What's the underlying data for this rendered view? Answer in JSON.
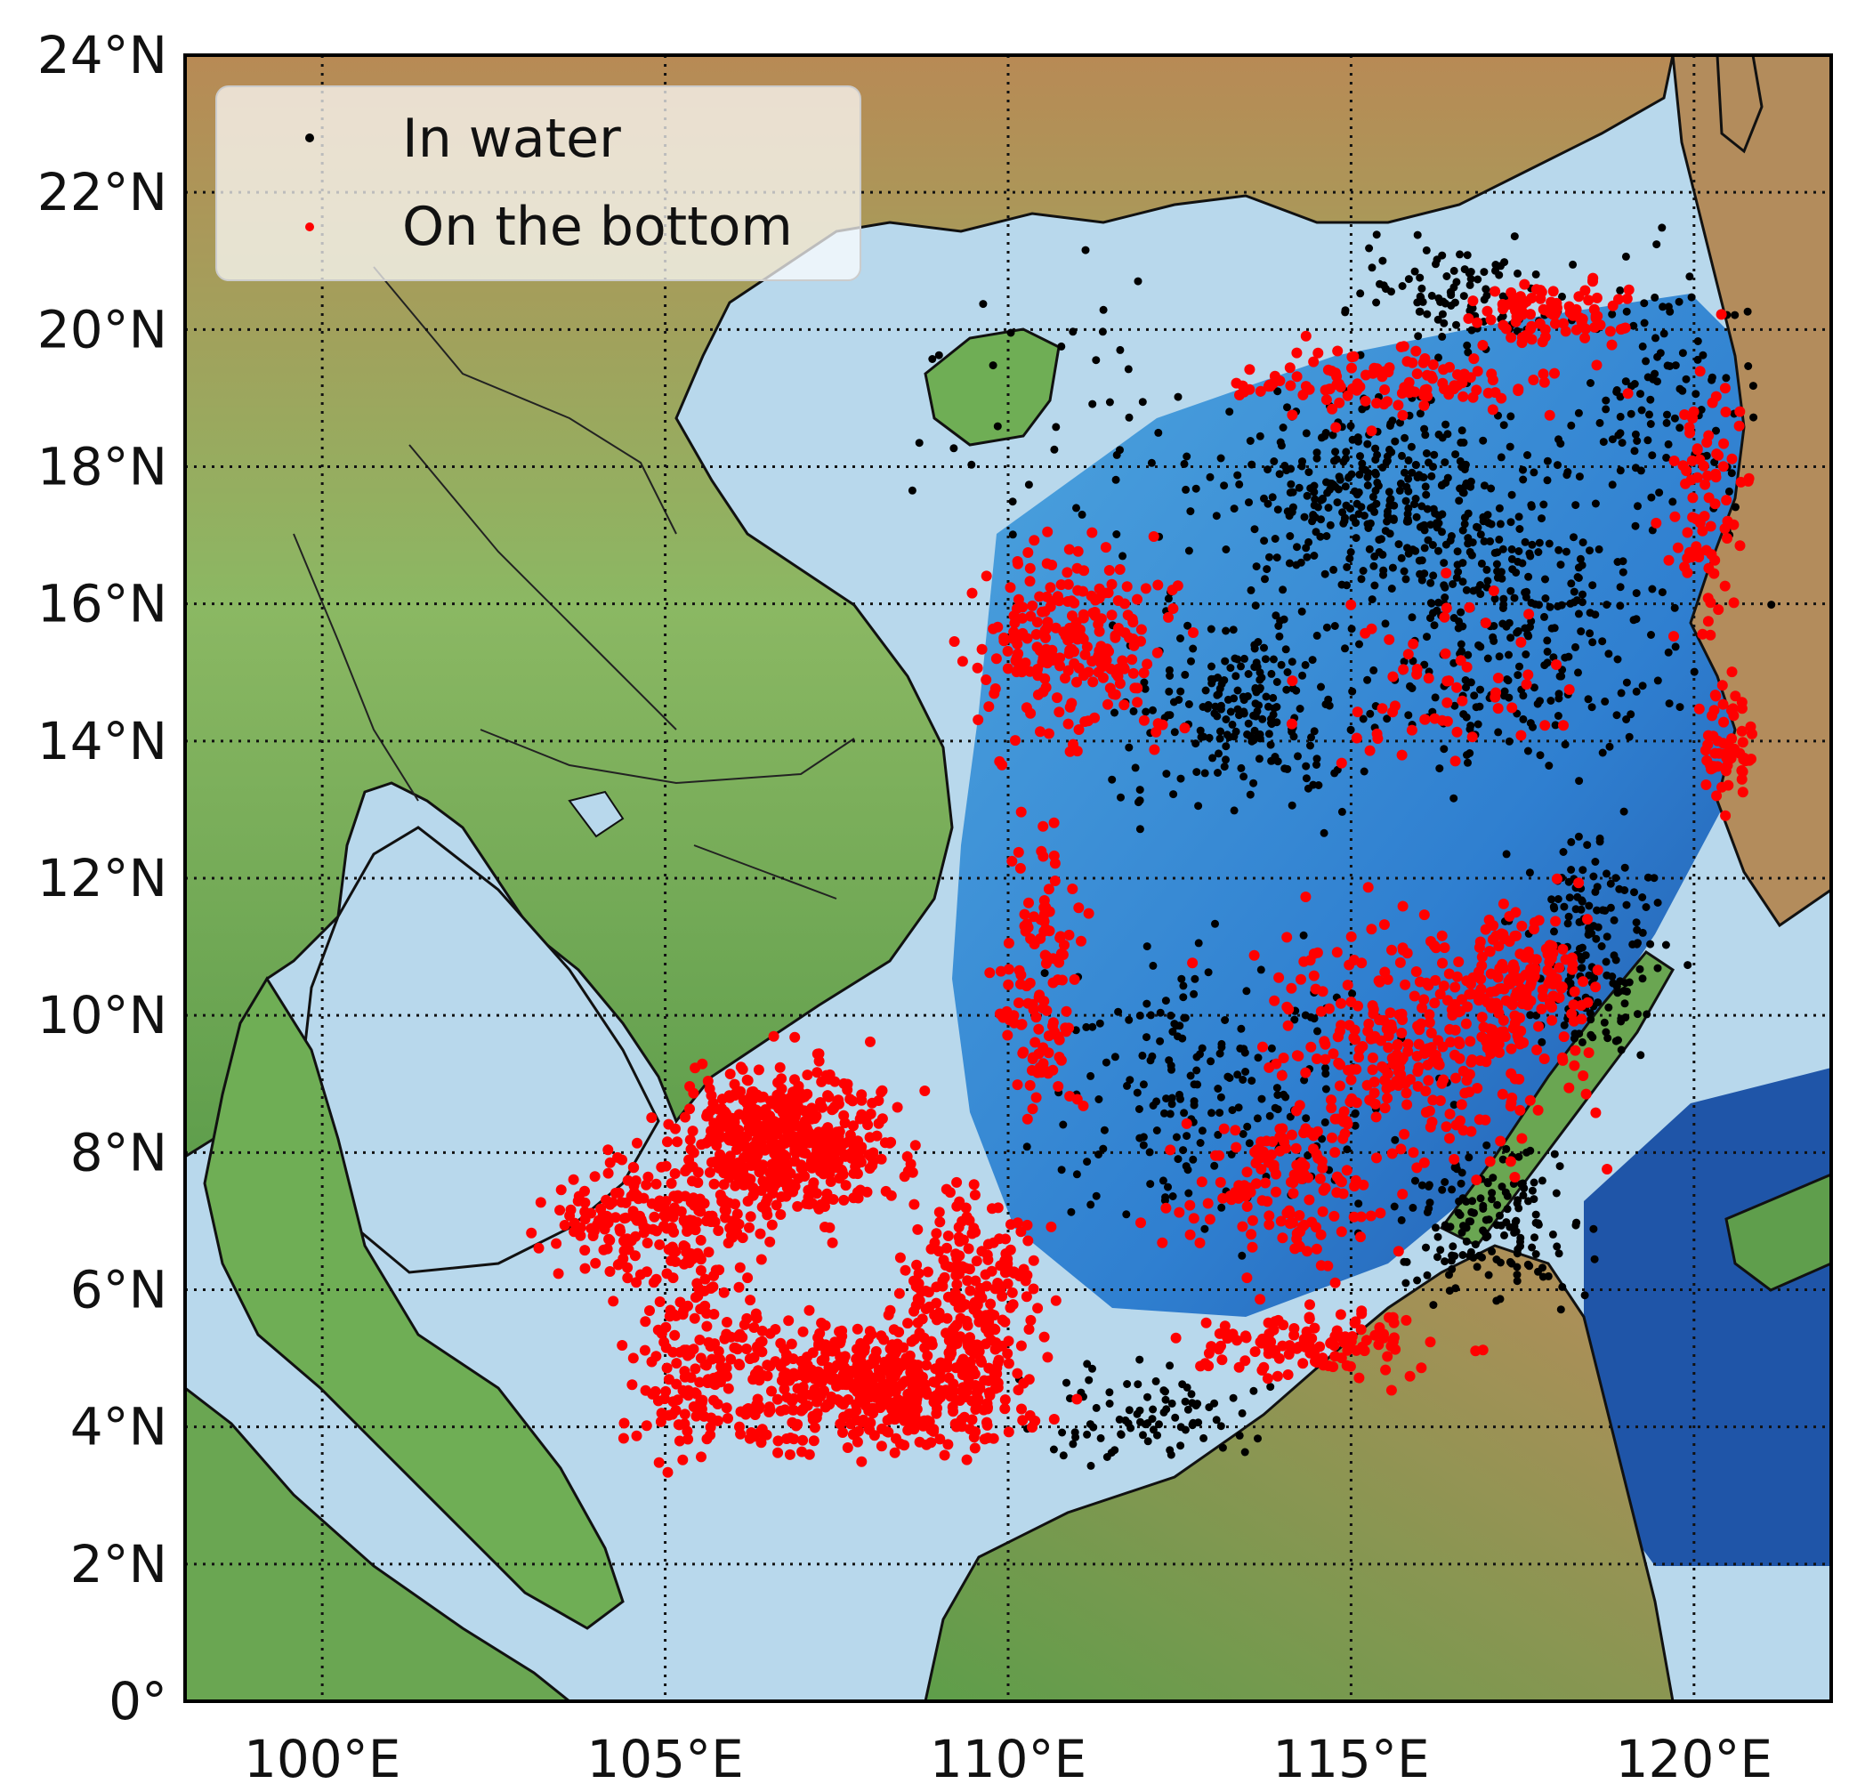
{
  "map": {
    "region": "South China Sea",
    "projection": "equirectangular",
    "lon_range": [
      98,
      122
    ],
    "lat_range": [
      0,
      24
    ],
    "graticule": "dotted",
    "basemap": "shaded relief / bathymetry",
    "colors": {
      "land_low": "#6fae55",
      "land_high": "#b88a55",
      "shelf_water": "#b8d8ec",
      "deep_water": "#2f7fd0",
      "deepest_water": "#1f55a8",
      "coastline": "#111111"
    }
  },
  "axes": {
    "lat_ticks": [
      {
        "value": 24,
        "label": "24°N"
      },
      {
        "value": 22,
        "label": "22°N"
      },
      {
        "value": 20,
        "label": "20°N"
      },
      {
        "value": 18,
        "label": "18°N"
      },
      {
        "value": 16,
        "label": "16°N"
      },
      {
        "value": 14,
        "label": "14°N"
      },
      {
        "value": 12,
        "label": "12°N"
      },
      {
        "value": 10,
        "label": "10°N"
      },
      {
        "value": 8,
        "label": "8°N"
      },
      {
        "value": 6,
        "label": "6°N"
      },
      {
        "value": 4,
        "label": "4°N"
      },
      {
        "value": 2,
        "label": "2°N"
      },
      {
        "value": 0,
        "label": "0°"
      }
    ],
    "lon_ticks": [
      {
        "value": 100,
        "label": "100°E"
      },
      {
        "value": 105,
        "label": "105°E"
      },
      {
        "value": 110,
        "label": "110°E"
      },
      {
        "value": 115,
        "label": "115°E"
      },
      {
        "value": 120,
        "label": "120°E"
      }
    ]
  },
  "legend": {
    "placement": "top-left",
    "entries": [
      {
        "label": "In water",
        "color": "#000000"
      },
      {
        "label": "On the bottom",
        "color": "#ff0000"
      }
    ]
  },
  "chart_data": {
    "type": "scatter",
    "title": "",
    "xlabel": "",
    "ylabel": "",
    "xlim": [
      98,
      122
    ],
    "ylim": [
      0,
      24
    ],
    "grid": true,
    "series": [
      {
        "name": "In water",
        "color": "#000000",
        "clusters": [
          {
            "center": [
              115.5,
              17.5
            ],
            "spread": [
              2.2,
              1.4
            ],
            "count": 360
          },
          {
            "center": [
              117.5,
              15.5
            ],
            "spread": [
              2.0,
              2.0
            ],
            "count": 260
          },
          {
            "center": [
              113.5,
              14.5
            ],
            "spread": [
              1.8,
              1.4
            ],
            "count": 220
          },
          {
            "center": [
              118.5,
              11.0
            ],
            "spread": [
              1.0,
              1.6
            ],
            "count": 160
          },
          {
            "center": [
              117.0,
              7.0
            ],
            "spread": [
              1.4,
              1.2
            ],
            "count": 160
          },
          {
            "center": [
              113.0,
              9.0
            ],
            "spread": [
              2.5,
              2.0
            ],
            "count": 200
          },
          {
            "center": [
              112.0,
              4.2
            ],
            "spread": [
              1.8,
              0.7
            ],
            "count": 90
          },
          {
            "center": [
              119.5,
              19.0
            ],
            "spread": [
              1.4,
              2.0
            ],
            "count": 120
          },
          {
            "center": [
              116.5,
              20.5
            ],
            "spread": [
              1.4,
              0.8
            ],
            "count": 100
          },
          {
            "center": [
              111.5,
              18.5
            ],
            "spread": [
              2.5,
              2.5
            ],
            "count": 50
          }
        ]
      },
      {
        "name": "On the bottom",
        "color": "#ff0000",
        "clusters": [
          {
            "center": [
              106.8,
              8.2
            ],
            "spread": [
              1.5,
              1.1
            ],
            "count": 520
          },
          {
            "center": [
              108.0,
              4.6
            ],
            "spread": [
              2.2,
              0.9
            ],
            "count": 520
          },
          {
            "center": [
              104.8,
              7.0
            ],
            "spread": [
              1.5,
              0.9
            ],
            "count": 200
          },
          {
            "center": [
              105.5,
              5.0
            ],
            "spread": [
              1.0,
              1.4
            ],
            "count": 150
          },
          {
            "center": [
              109.5,
              6.0
            ],
            "spread": [
              1.0,
              1.5
            ],
            "count": 200
          },
          {
            "center": [
              111.0,
              15.5
            ],
            "spread": [
              1.4,
              1.5
            ],
            "count": 230
          },
          {
            "center": [
              115.5,
              19.2
            ],
            "spread": [
              2.5,
              0.5
            ],
            "count": 120
          },
          {
            "center": [
              118.0,
              20.2
            ],
            "spread": [
              1.2,
              0.5
            ],
            "count": 90
          },
          {
            "center": [
              120.2,
              17.5
            ],
            "spread": [
              0.6,
              2.0
            ],
            "count": 80
          },
          {
            "center": [
              120.5,
              14.0
            ],
            "spread": [
              0.4,
              1.0
            ],
            "count": 60
          },
          {
            "center": [
              116.0,
              9.5
            ],
            "spread": [
              2.2,
              1.8
            ],
            "count": 320
          },
          {
            "center": [
              117.5,
              10.5
            ],
            "spread": [
              1.0,
              1.0
            ],
            "count": 140
          },
          {
            "center": [
              114.5,
              5.2
            ],
            "spread": [
              1.8,
              0.5
            ],
            "count": 130
          },
          {
            "center": [
              110.5,
              10.5
            ],
            "spread": [
              0.6,
              2.0
            ],
            "count": 120
          },
          {
            "center": [
              114.0,
              7.5
            ],
            "spread": [
              1.5,
              1.2
            ],
            "count": 140
          },
          {
            "center": [
              116.5,
              15.0
            ],
            "spread": [
              2.0,
              1.2
            ],
            "count": 60
          }
        ]
      }
    ]
  }
}
